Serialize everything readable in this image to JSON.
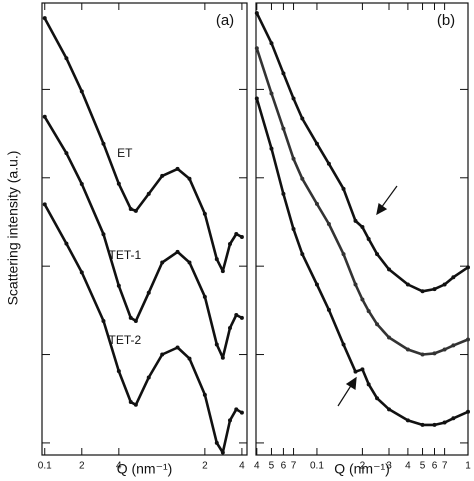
{
  "chart_data": [
    {
      "type": "line",
      "title": "(a)",
      "ylabel": "Scattering intensity (a.u.)",
      "xlabel": "Q (nm⁻¹)",
      "xscale": "log",
      "yscale": "log",
      "xlim": [
        0.095,
        4.4
      ],
      "ylim": [
        0.73,
        95000
      ],
      "xticks": [
        0.1,
        {
          "value": 0.2,
          "label": "2"
        },
        {
          "value": 0.4,
          "label": "4"
        },
        {
          "value": 2,
          "label": "2"
        },
        {
          "value": 4,
          "label": "4"
        }
      ],
      "yticks": [
        1,
        10,
        100,
        1000,
        10000
      ],
      "x": [
        0.1,
        0.15,
        0.2,
        0.3,
        0.4,
        0.5,
        0.55,
        0.7,
        0.9,
        1.2,
        1.5,
        2.0,
        2.5,
        2.8,
        3.2,
        3.6,
        4.0
      ],
      "series": [
        {
          "name": "ET",
          "color": "#111111",
          "values": [
            64000,
            22500,
            9500,
            2430,
            855,
            444,
            422,
            658,
            1050,
            1260,
            975,
            390,
            120,
            88,
            178,
            231,
            214
          ]
        },
        {
          "name": "TET-1",
          "color": "#111111",
          "values": [
            4900,
            1900,
            850,
            230,
            60,
            26,
            24,
            50,
            110,
            145,
            110,
            45,
            13,
            9.2,
            20,
            28,
            26
          ]
        },
        {
          "name": "TET-2",
          "color": "#111111",
          "values": [
            500,
            180,
            85,
            24,
            6.5,
            2.9,
            2.7,
            5.5,
            10,
            12,
            9,
            3.5,
            1.0,
            0.78,
            1.8,
            2.4,
            2.2
          ]
        }
      ]
    },
    {
      "type": "line",
      "title": "(b)",
      "xlabel": "Q (nm⁻¹)",
      "xscale": "log",
      "yscale": "log",
      "xlim": [
        0.0395,
        1.0
      ],
      "ylim": [
        0.73,
        95000
      ],
      "xticks": [
        {
          "value": 0.04,
          "label": "4"
        },
        {
          "value": 0.05,
          "label": "5"
        },
        {
          "value": 0.06,
          "label": "6"
        },
        {
          "value": 0.07,
          "label": "7"
        },
        0.1,
        {
          "value": 0.2,
          "label": "2"
        },
        {
          "value": 0.3,
          "label": "3"
        },
        {
          "value": 0.4,
          "label": "4"
        },
        {
          "value": 0.5,
          "label": "5"
        },
        {
          "value": 0.6,
          "label": "6"
        },
        {
          "value": 0.7,
          "label": "7"
        },
        1
      ],
      "yticks": [
        1,
        10,
        100,
        1000,
        10000
      ],
      "x": [
        0.04,
        0.05,
        0.06,
        0.07,
        0.08,
        0.1,
        0.12,
        0.15,
        0.18,
        0.2,
        0.22,
        0.25,
        0.3,
        0.4,
        0.5,
        0.6,
        0.7,
        0.8,
        1.0
      ],
      "series": [
        {
          "color": "#111111",
          "values": [
            73000,
            33300,
            15200,
            7900,
            4680,
            2430,
            1440,
            750,
            325,
            277,
            203,
            137,
            92,
            62,
            52,
            55,
            62,
            75,
            97
          ]
        },
        {
          "color": "#333333",
          "values": [
            29200,
            9000,
            3600,
            1640,
            975,
            507,
            300,
            137,
            62,
            42,
            31,
            22,
            15.6,
            11.4,
            10,
            10.3,
            11.4,
            12.7,
            14.8
          ]
        },
        {
          "color": "#111111",
          "values": [
            7900,
            2140,
            658,
            263,
            137,
            62,
            32,
            13,
            6.4,
            6.8,
            4.6,
            3.2,
            2.4,
            1.8,
            1.6,
            1.6,
            1.7,
            1.9,
            2.25
          ]
        }
      ]
    }
  ]
}
